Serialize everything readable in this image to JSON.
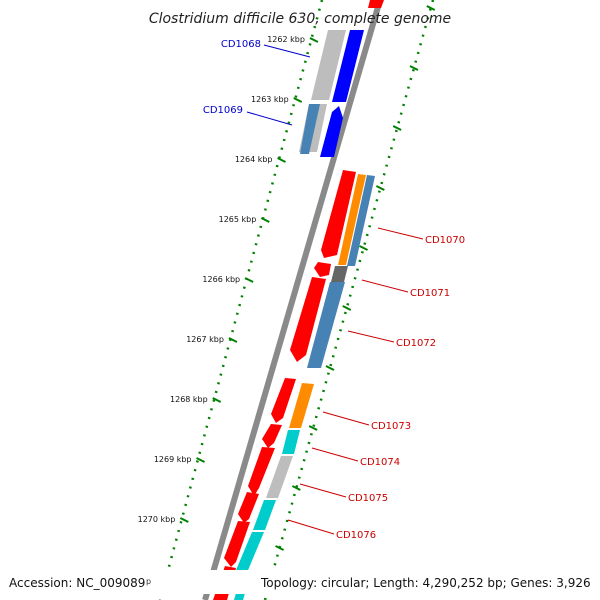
{
  "map": {
    "title": "Clostridium difficile 630, complete genome",
    "footer_accession": "Accession: NC_009089",
    "footer_accession_suffix": "p",
    "footer_summary": "Topology: circular; Length: 4,290,252 bp; Genes: 3,926"
  },
  "ruler": {
    "ticks": [
      {
        "label": "1262 kbp"
      },
      {
        "label": "1263 kbp"
      },
      {
        "label": "1264 kbp"
      },
      {
        "label": "1265 kbp"
      },
      {
        "label": "1266 kbp"
      },
      {
        "label": "1267 kbp"
      },
      {
        "label": "1268 kbp"
      },
      {
        "label": "1269 kbp"
      },
      {
        "label": "1270 kbp"
      }
    ]
  },
  "genes": [
    {
      "label": "CD1068",
      "color": "#0000cc"
    },
    {
      "label": "CD1069",
      "color": "#0000cc"
    },
    {
      "label": "CD1070",
      "color": "#cc0000"
    },
    {
      "label": "CD1071",
      "color": "#cc0000"
    },
    {
      "label": "CD1072",
      "color": "#cc0000"
    },
    {
      "label": "CD1073",
      "color": "#cc0000"
    },
    {
      "label": "CD1074",
      "color": "#cc0000"
    },
    {
      "label": "CD1075",
      "color": "#cc0000"
    },
    {
      "label": "CD1076",
      "color": "#cc0000"
    }
  ],
  "colors": {
    "strand_forward": "#ff0000",
    "strand_reverse": "#0000ff",
    "category_steelblue": "#4682b4",
    "category_orange": "#ff8c00",
    "category_cyan": "#00cccc",
    "category_gray": "#bbbbbb",
    "category_darkgray": "#666666",
    "backbone": "#888888",
    "dotted_ring": "#008000"
  }
}
